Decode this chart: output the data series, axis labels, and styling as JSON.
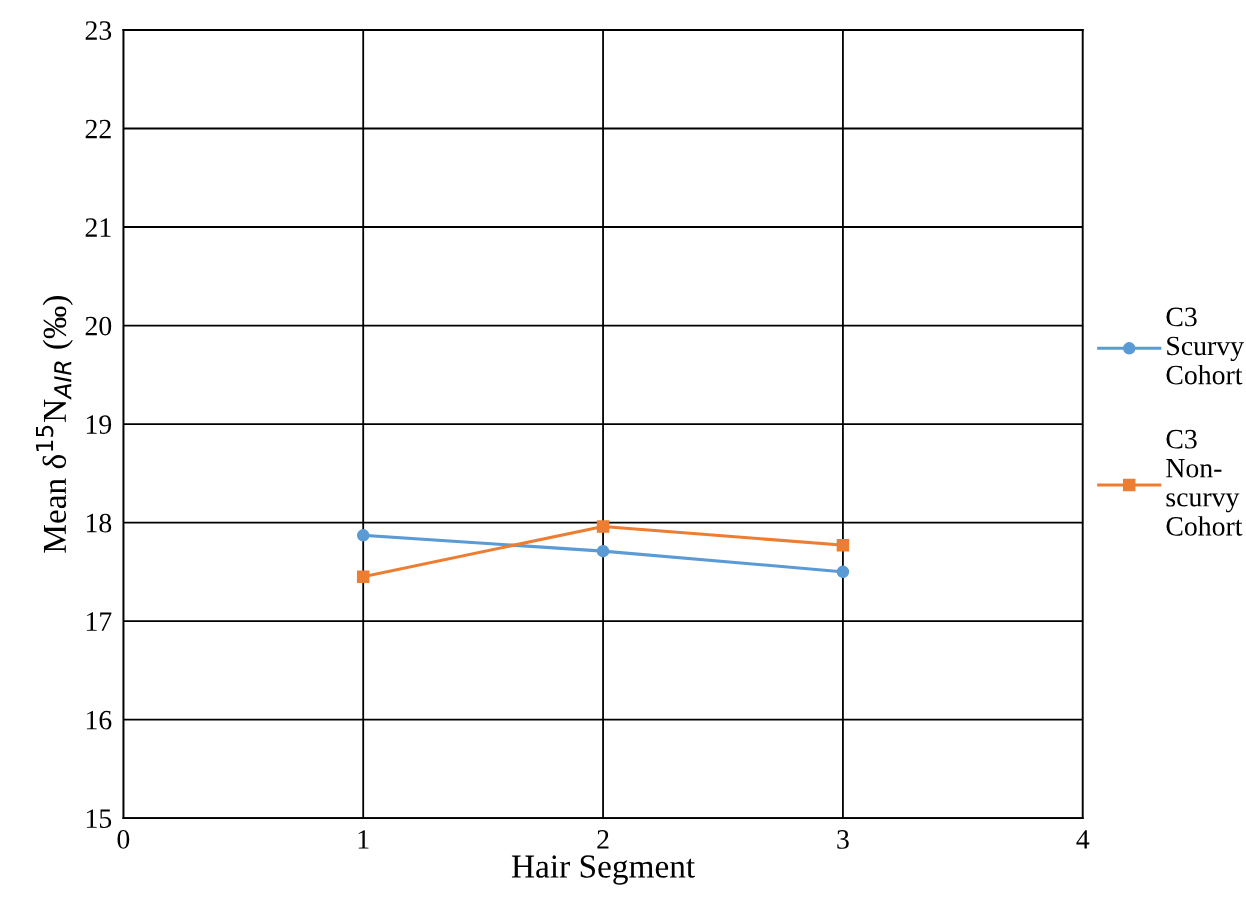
{
  "chart_data": {
    "type": "line",
    "xlabel": "Hair Segment",
    "ylabel": "Mean δ$^{15}$N$_{AIR}$ (‰)",
    "x": [
      1,
      2,
      3
    ],
    "series": [
      {
        "name": "C3 Scurvy Cohort",
        "color": "#5b9bd5",
        "marker": "circle",
        "values": [
          17.87,
          17.71,
          17.5
        ]
      },
      {
        "name": "C3 Non-scurvy Cohort",
        "color": "#ed7d31",
        "marker": "square",
        "values": [
          17.45,
          17.96,
          17.77
        ]
      }
    ],
    "xlim": [
      0,
      4
    ],
    "xticks": [
      0,
      1,
      2,
      3,
      4
    ],
    "ylim": [
      15,
      23
    ],
    "yticks": [
      15,
      16,
      17,
      18,
      19,
      20,
      21,
      22,
      23
    ],
    "grid": true,
    "legend": "right",
    "line_style": "solid"
  }
}
